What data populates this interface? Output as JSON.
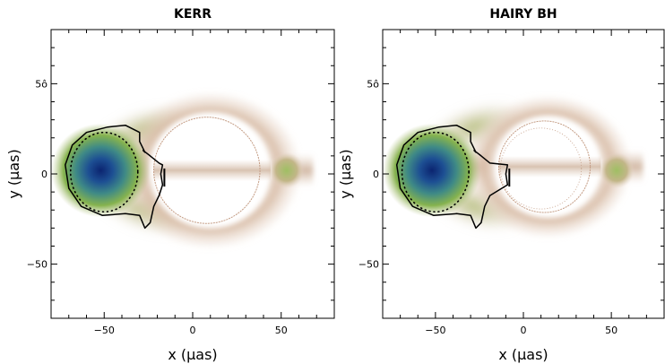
{
  "chart_data": [
    {
      "type": "heatmap",
      "title": "KERR",
      "xlabel": "x (μas)",
      "ylabel": "y (μas)",
      "xlim": [
        -80,
        80
      ],
      "ylim": [
        -80,
        80
      ],
      "xticks": [
        -50,
        0,
        50
      ],
      "yticks": [
        50,
        0,
        -50
      ],
      "xtick_labels": [
        "−50",
        "0",
        "50"
      ],
      "ytick_labels": [
        "50",
        "0",
        "−50"
      ],
      "ytick_label_top_raw": "5ô",
      "features": {
        "hot_spot_center": [
          -50,
          2
        ],
        "shadow_center": [
          8,
          2
        ],
        "shadow_radius": 30,
        "tail_blob_center": [
          53,
          2
        ]
      },
      "colors": {
        "peak": "#0c2a78",
        "mid": "#3f8a86",
        "green": "#8ab84a",
        "halo": "#c6a48a",
        "background": "#ffffff"
      }
    },
    {
      "type": "heatmap",
      "title": "HAIRY BH",
      "xlabel": "x (μas)",
      "ylabel": "y (μas)",
      "xlim": [
        -80,
        80
      ],
      "ylim": [
        -80,
        80
      ],
      "xticks": [
        -50,
        0,
        50
      ],
      "yticks": [
        50,
        0,
        -50
      ],
      "xtick_labels": [
        "−50",
        "0",
        "50"
      ],
      "ytick_labels": [
        "50",
        "0",
        "−50"
      ],
      "ytick_label_top_raw": "5ô",
      "features": {
        "hot_spot_center": [
          -50,
          2
        ],
        "shadow_center": [
          12,
          4
        ],
        "shadow_radius": 26,
        "tail_blob_center": [
          53,
          2
        ]
      },
      "colors": {
        "peak": "#0c2a78",
        "mid": "#3f8a86",
        "green": "#8ab84a",
        "halo": "#c6a48a",
        "background": "#ffffff"
      }
    }
  ]
}
